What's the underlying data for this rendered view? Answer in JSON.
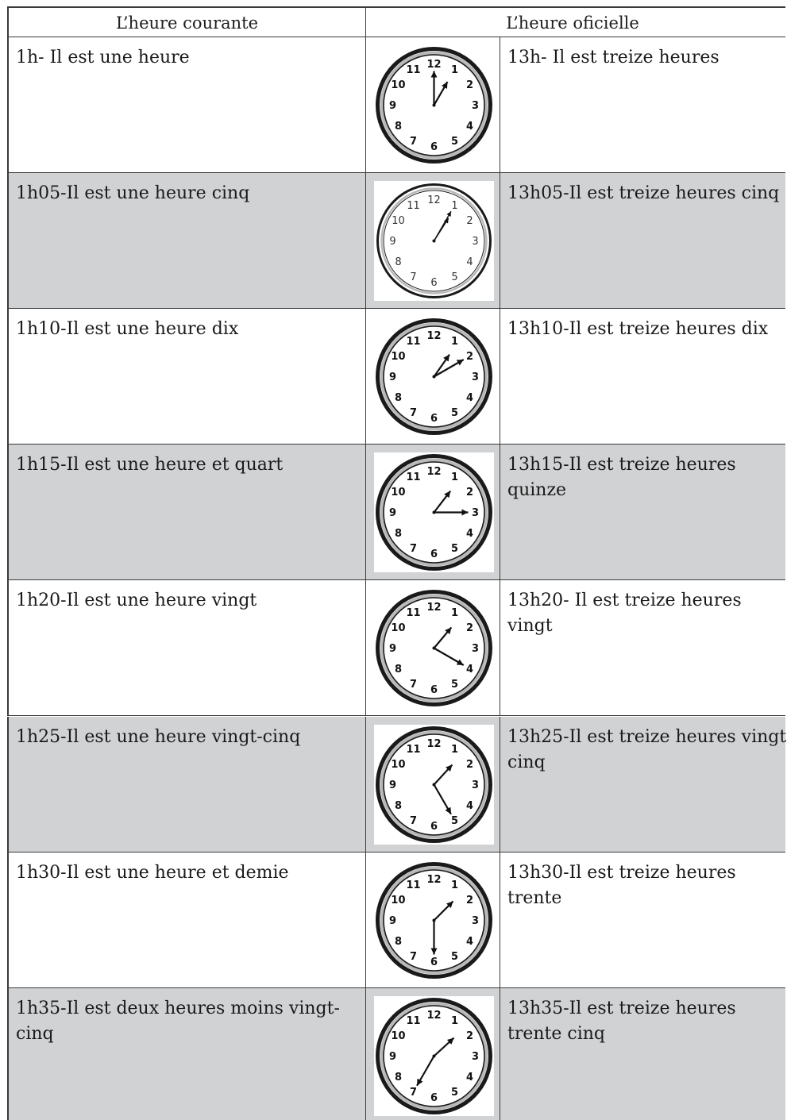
{
  "table": {
    "headers": {
      "left": "L’heure courante",
      "right": "L’heure oficielle"
    },
    "rows": [
      {
        "courante": "1h- Il est une heure",
        "officielle": "13h- Il est treize heures",
        "hour": 1,
        "minute": 0,
        "style": "bold"
      },
      {
        "courante": "1h05-Il est une heure cinq",
        "officielle": "13h05-Il est treize heures cinq",
        "hour": 1,
        "minute": 5,
        "style": "thin"
      },
      {
        "courante": "1h10-Il est une heure dix",
        "officielle": "13h10-Il est treize heures dix",
        "hour": 1,
        "minute": 10,
        "style": "bold"
      },
      {
        "courante": "1h15-Il est une heure et quart",
        "officielle": "13h15-Il est treize heures quinze",
        "hour": 1,
        "minute": 15,
        "style": "bold"
      },
      {
        "courante": "1h20-Il est une heure vingt",
        "officielle": "13h20- Il est treize heures vingt",
        "hour": 1,
        "minute": 20,
        "style": "bold"
      },
      {
        "courante": "1h25-Il est une heure vingt-cinq",
        "officielle": "13h25-Il est treize heures vingt cinq",
        "hour": 1,
        "minute": 25,
        "style": "bold"
      },
      {
        "courante": "1h30-Il est une heure et demie",
        "officielle": "13h30-Il est treize heures trente",
        "hour": 1,
        "minute": 30,
        "style": "bold"
      },
      {
        "courante": "1h35-Il est deux heures moins vingt-cinq",
        "officielle": "13h35-Il est treize heures trente cinq",
        "hour": 1,
        "minute": 35,
        "style": "bold"
      }
    ],
    "clock_numerals": [
      "12",
      "1",
      "2",
      "3",
      "4",
      "5",
      "6",
      "7",
      "8",
      "9",
      "10",
      "11"
    ],
    "colors": {
      "shaded_row": "#d1d2d4",
      "border": "#3a3a3a",
      "clock_ring": "#1a1a1a",
      "clock_inner_ring": "#b8b8b8"
    }
  }
}
